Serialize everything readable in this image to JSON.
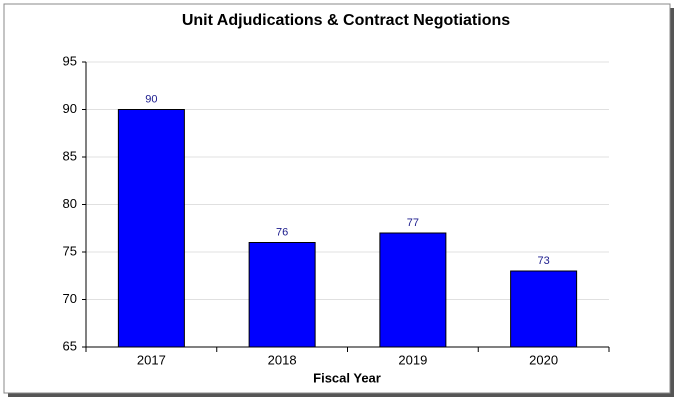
{
  "chart_data": {
    "type": "bar",
    "title": "Unit Adjudications & Contract Negotiations",
    "x_label": "Fiscal Year",
    "categories": [
      "2017",
      "2018",
      "2019",
      "2020"
    ],
    "values": [
      90,
      76,
      77,
      73
    ],
    "color": "#0000ff",
    "label_color": "#1a1a8c",
    "ylim": [
      65,
      95
    ],
    "yticks": [
      65,
      70,
      75,
      80,
      85,
      90,
      95
    ],
    "grid": true
  }
}
